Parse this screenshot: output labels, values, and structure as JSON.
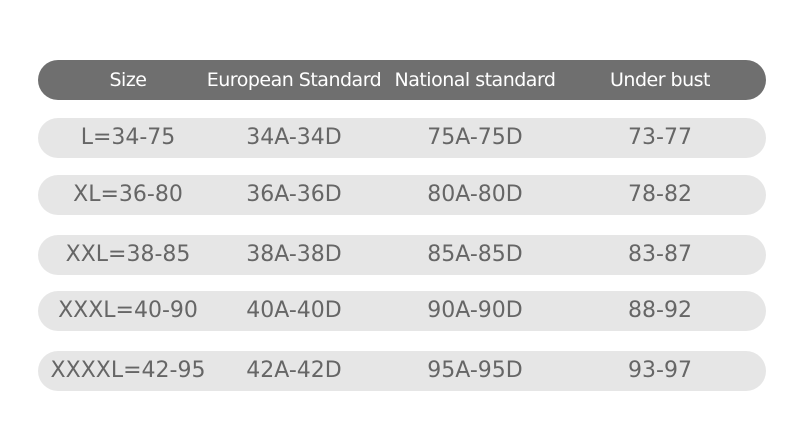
{
  "table": {
    "header": [
      "Size",
      "European Standard",
      "National standard",
      "Under bust"
    ],
    "rows": [
      [
        "L=34-75",
        "34A-34D",
        "75A-75D",
        "73-77"
      ],
      [
        "XL=36-80",
        "36A-36D",
        "80A-80D",
        "78-82"
      ],
      [
        "XXL=38-85",
        "38A-38D",
        "85A-85D",
        "83-87"
      ],
      [
        "XXXL=40-90",
        "40A-40D",
        "90A-90D",
        "88-92"
      ],
      [
        "XXXXL=42-95",
        "42A-42D",
        "95A-95D",
        "93-97"
      ]
    ]
  }
}
